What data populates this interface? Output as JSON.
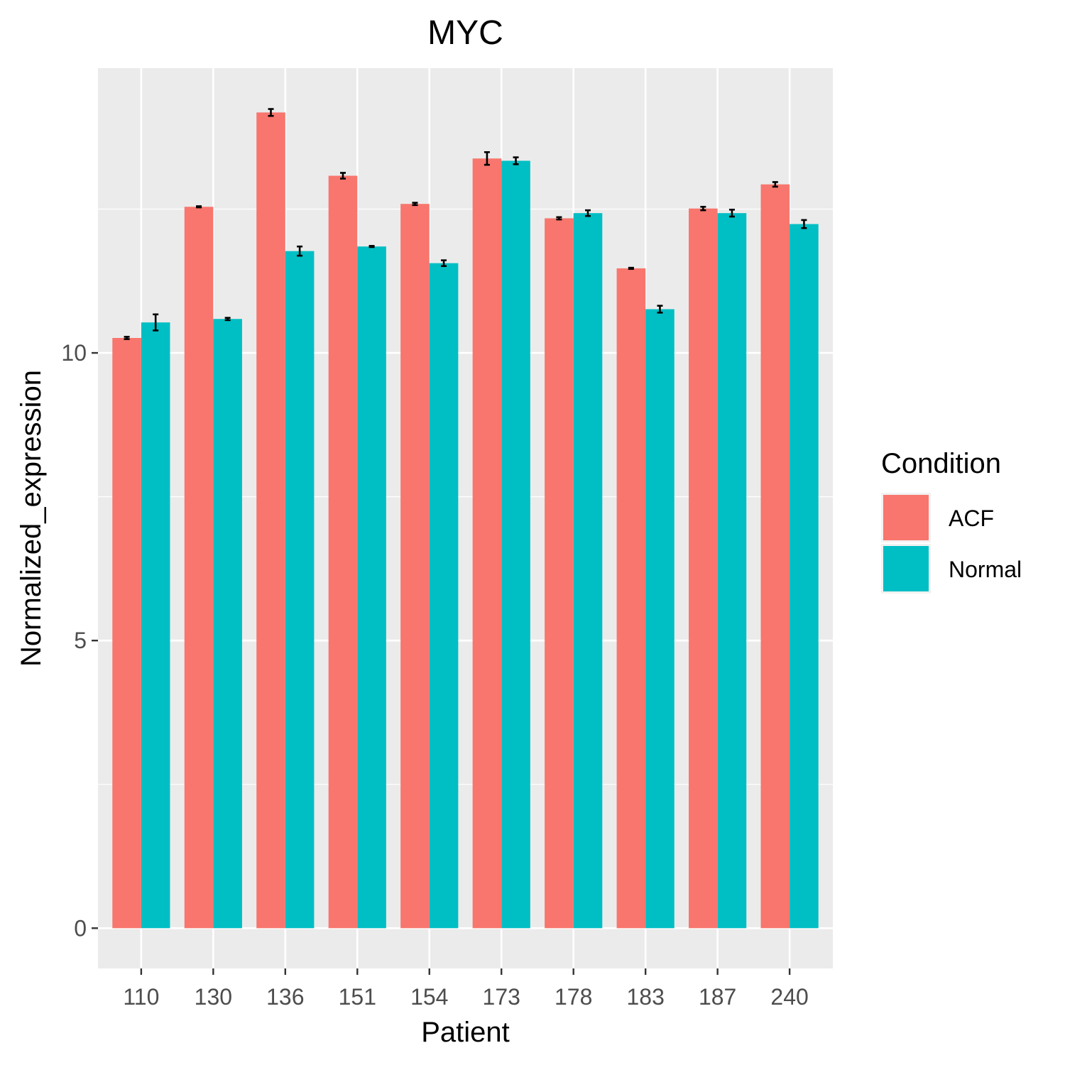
{
  "chart_data": {
    "type": "bar",
    "title": "MYC",
    "xlabel": "Patient",
    "ylabel": "Normalized_expression",
    "categories": [
      "110",
      "130",
      "136",
      "151",
      "154",
      "173",
      "178",
      "183",
      "187",
      "240"
    ],
    "series": [
      {
        "name": "ACF",
        "color": "#F8766D",
        "values": [
          10.26,
          12.54,
          14.18,
          13.08,
          12.59,
          13.38,
          12.34,
          11.47,
          12.51,
          12.93
        ],
        "errors": [
          0.02,
          0.01,
          0.06,
          0.05,
          0.02,
          0.11,
          0.02,
          0.01,
          0.03,
          0.04
        ]
      },
      {
        "name": "Normal",
        "color": "#00BFC4",
        "values": [
          10.53,
          10.59,
          11.77,
          11.85,
          11.56,
          13.34,
          12.43,
          10.76,
          12.43,
          12.24
        ],
        "errors": [
          0.14,
          0.02,
          0.08,
          0.01,
          0.05,
          0.06,
          0.05,
          0.06,
          0.06,
          0.07
        ]
      }
    ],
    "ylim": [
      -0.7,
      14.95
    ],
    "yticks": [
      "0",
      "5",
      "10"
    ],
    "grid": true,
    "legend": {
      "title": "Condition",
      "position": "right"
    }
  }
}
